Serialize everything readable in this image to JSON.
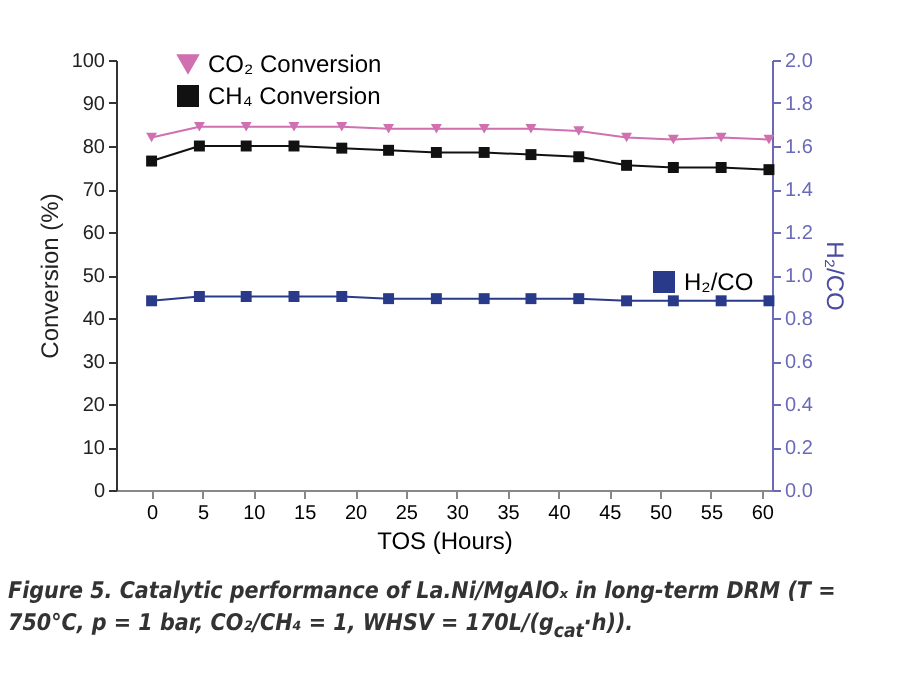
{
  "chart_data": {
    "type": "line",
    "xlabel": "TOS (Hours)",
    "ylabel": "Conversion (%)",
    "y2label": "H₂/CO",
    "x": [
      0,
      4.7,
      9.3,
      14,
      18.7,
      23.3,
      28,
      32.7,
      37.3,
      42,
      46.7,
      51.3,
      56,
      60.7
    ],
    "series": [
      {
        "name": "CO₂ Conversion",
        "color": "#d070b0",
        "marker": "triangle",
        "values": [
          82,
          84.5,
          84.5,
          84.5,
          84.5,
          84,
          84,
          84,
          84,
          83.5,
          82,
          81.5,
          82,
          81.5
        ]
      },
      {
        "name": "CH₄ Conversion",
        "color": "#111111",
        "marker": "square",
        "values": [
          76.5,
          80,
          80,
          80,
          79.5,
          79,
          78.5,
          78.5,
          78,
          77.5,
          75.5,
          75,
          75,
          74.5
        ]
      },
      {
        "name": "H₂/CO",
        "color": "#2a3a8a",
        "marker": "square",
        "axis": "y2",
        "values": [
          0.88,
          0.9,
          0.9,
          0.9,
          0.9,
          0.89,
          0.89,
          0.89,
          0.89,
          0.89,
          0.88,
          0.88,
          0.88,
          0.88
        ]
      }
    ],
    "xlim": [
      -3.5,
      61
    ],
    "xticks": [
      0,
      5,
      10,
      15,
      20,
      25,
      30,
      35,
      40,
      45,
      50,
      55,
      60
    ],
    "ylim": [
      0,
      100
    ],
    "yticks": [
      0,
      10,
      20,
      30,
      40,
      50,
      60,
      70,
      80,
      90,
      100
    ],
    "y2lim": [
      0,
      2
    ],
    "y2ticks": [
      {
        "value": 0,
        "label": "0.0"
      },
      {
        "value": 0.2,
        "label": "0.2"
      },
      {
        "value": 0.4,
        "label": "0.4"
      },
      {
        "value": 0.6,
        "label": "0.6"
      },
      {
        "value": 0.8,
        "label": "0.8"
      },
      {
        "value": 1,
        "label": "1.0"
      },
      {
        "value": 1.2,
        "label": "1.2"
      },
      {
        "value": 1.4,
        "label": "1.4"
      },
      {
        "value": 1.6,
        "label": "1.6"
      },
      {
        "value": 1.8,
        "label": "1.8"
      },
      {
        "value": 2,
        "label": "2.0"
      }
    ],
    "grid": false,
    "legend": "top left",
    "line_style": "solid",
    "annotations": [
      "Figure 5. Catalytic performance of La.Ni/MgAlOₓ in long-term DRM (T = 750°C, p = 1 bar, CO₂/CH₄ = 1, WHSV = 170L/(g$_{cat}$·h))."
    ]
  }
}
